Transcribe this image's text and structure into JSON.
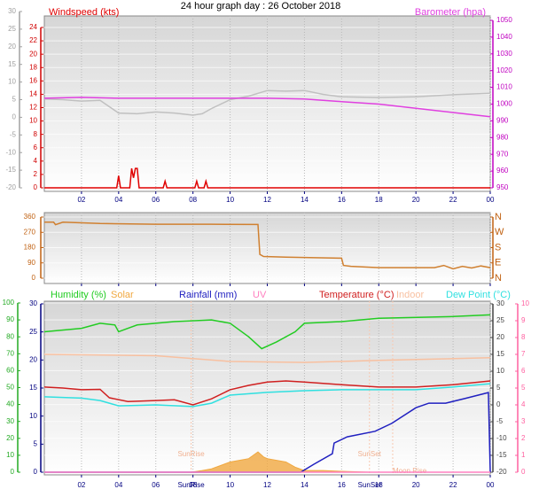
{
  "chart_data": [
    {
      "type": "line",
      "title": "24 hour graph day : 26 October 2018",
      "xlim": [
        0,
        24
      ],
      "xticks": [
        {
          "value": 2,
          "label": "02"
        },
        {
          "value": 4,
          "label": "04"
        },
        {
          "value": 6,
          "label": "06"
        },
        {
          "value": 8,
          "label": "08"
        },
        10,
        12,
        14,
        16,
        18,
        20,
        22,
        {
          "value": 24,
          "label": "00"
        }
      ],
      "ylim": [
        0,
        24
      ],
      "yticks": [
        0,
        2,
        4,
        6,
        8,
        10,
        12,
        14,
        16,
        18,
        20,
        22,
        24
      ],
      "y2lim": [
        950,
        1050
      ],
      "y2ticks": [
        950,
        960,
        970,
        980,
        990,
        1000,
        1010,
        1020,
        1030,
        1040,
        1050
      ],
      "y3lim": [
        -20,
        30
      ],
      "y3ticks": [
        -20,
        -15,
        -10,
        -5,
        0,
        5,
        10,
        15,
        20,
        25,
        30
      ],
      "grid": true,
      "series": [
        {
          "color": "#c0c0c0",
          "axis": "y3",
          "x": [
            0,
            1,
            2,
            3,
            3.5,
            4,
            5,
            6,
            7,
            8,
            8.5,
            9,
            10,
            11,
            12,
            13,
            14,
            15,
            16,
            18,
            20,
            22,
            24
          ],
          "values": [
            5.2,
            5,
            4.6,
            4.8,
            3,
            1.2,
            1,
            1.5,
            1.2,
            0.6,
            1,
            2.5,
            5,
            6,
            7.6,
            7.4,
            7.6,
            6.5,
            5.8,
            5.6,
            5.8,
            6.4,
            6.8
          ]
        },
        {
          "name": "Windspeed (kts)",
          "color": "#e00000",
          "axis": "y",
          "x": [
            0,
            3.9,
            4.0,
            4.1,
            4.6,
            4.7,
            4.8,
            4.9,
            5.0,
            5.1,
            6.4,
            6.5,
            6.6,
            8.1,
            8.2,
            8.3,
            8.6,
            8.7,
            8.8,
            24
          ],
          "values": [
            0,
            0,
            1.8,
            0,
            0,
            2.9,
            1.5,
            2.9,
            2.9,
            0,
            0,
            1,
            0,
            0,
            1,
            0,
            0,
            1,
            0,
            0
          ]
        },
        {
          "name": "Barometer (hpa)",
          "color": "#e040e0",
          "axis": "y2",
          "x": [
            0,
            2,
            4,
            6,
            8,
            10,
            12,
            14,
            16,
            18,
            20,
            22,
            24
          ],
          "values": [
            1003.5,
            1004,
            1003.5,
            1003.5,
            1003.5,
            1003.5,
            1003.5,
            1003,
            1001.5,
            1000,
            997.5,
            995,
            992.5
          ]
        }
      ]
    },
    {
      "type": "line",
      "xlim": [
        0,
        24
      ],
      "xticks": [
        {
          "value": 2,
          "label": "02"
        },
        {
          "value": 4,
          "label": "04"
        },
        {
          "value": 6,
          "label": "06"
        },
        {
          "value": 8,
          "label": "08"
        },
        10,
        12,
        14,
        16,
        18,
        20,
        22,
        {
          "value": 24,
          "label": "00"
        }
      ],
      "ylim": [
        0,
        360
      ],
      "yticks": [
        0,
        90,
        180,
        270,
        360
      ],
      "y2lim": [
        0,
        360
      ],
      "y2ticks": [
        {
          "value": 0,
          "label": "N"
        },
        {
          "value": 90,
          "label": "E"
        },
        {
          "value": 180,
          "label": "S"
        },
        {
          "value": 270,
          "label": "W"
        },
        {
          "value": 360,
          "label": "N"
        }
      ],
      "grid": true,
      "series": [
        {
          "color": "#d08030",
          "axis": "y",
          "x": [
            0,
            0.5,
            0.6,
            1,
            3,
            6,
            9,
            11.5,
            11.6,
            11.8,
            13,
            16,
            16.1,
            16.5,
            18,
            21,
            21.5,
            22,
            22.5,
            23,
            23.5,
            24
          ],
          "values": [
            330,
            330,
            315,
            330,
            322,
            318,
            318,
            316,
            140,
            128,
            124,
            118,
            75,
            70,
            62,
            62,
            75,
            55,
            70,
            60,
            72,
            62
          ]
        }
      ]
    },
    {
      "type": "line",
      "xlim": [
        0,
        24
      ],
      "xticks": [
        {
          "value": 2,
          "label": "02"
        },
        {
          "value": 4,
          "label": "04"
        },
        {
          "value": 6,
          "label": "06"
        },
        {
          "value": 8,
          "label": "08"
        },
        10,
        12,
        14,
        16,
        18,
        20,
        22,
        {
          "value": 24,
          "label": "00"
        }
      ],
      "ylim": [
        0,
        100
      ],
      "yticks": [
        0,
        10,
        20,
        30,
        40,
        50,
        60,
        70,
        80,
        90,
        100
      ],
      "y2lim": [
        -20,
        30
      ],
      "y2ticks": [
        -20,
        -15,
        -10,
        -5,
        0,
        5,
        10,
        15,
        20,
        25,
        30
      ],
      "y3lim": [
        0,
        30
      ],
      "y3ticks": [
        0,
        5,
        10,
        15,
        20,
        25,
        30
      ],
      "y4lim": [
        0,
        10
      ],
      "y4ticks": [
        0,
        1,
        2,
        3,
        4,
        5,
        6,
        7,
        8,
        9,
        10
      ],
      "grid": true,
      "annotations": [
        {
          "text": "SunRise",
          "x": 7.9
        },
        {
          "text": "SunSet",
          "x": 17.5
        },
        {
          "text": "Moon Rise",
          "x": 18.75
        }
      ],
      "series": [
        {
          "name": "Humidity (%)",
          "color": "#22cc22",
          "axis": "y",
          "x": [
            0,
            2,
            3,
            3.8,
            4,
            4.5,
            5,
            7,
            9,
            10,
            11,
            11.7,
            12.5,
            13.5,
            14,
            16,
            18,
            22,
            24
          ],
          "values": [
            83,
            85,
            88,
            87,
            83,
            85,
            87,
            89,
            90,
            88,
            80,
            73,
            77,
            83,
            88,
            89,
            91,
            92,
            93
          ]
        },
        {
          "name": "Solar",
          "color": "#f0a840",
          "axis": "y",
          "area": true,
          "x": [
            7.9,
            8.5,
            9,
            9.5,
            10,
            10.5,
            11,
            11.5,
            11.8,
            12,
            12.5,
            13,
            13.5,
            14,
            15,
            16,
            17.5
          ],
          "values": [
            0,
            1,
            2,
            4,
            6,
            7,
            8,
            12,
            9,
            8,
            7,
            6,
            3,
            1,
            1,
            0.5,
            0
          ]
        },
        {
          "name": "Rainfall (mm)",
          "color": "#2020c0",
          "axis": "y3",
          "x": [
            0,
            13.8,
            14.5,
            15.5,
            15.6,
            16.3,
            17.8,
            18.7,
            20,
            20.7,
            21.6,
            22.6,
            23.9,
            24
          ],
          "values": [
            0,
            0,
            1.4,
            3.3,
            5.2,
            6.3,
            7.3,
            8.7,
            11.5,
            12.3,
            12.3,
            13.1,
            14.2,
            0
          ]
        },
        {
          "name": "UV",
          "color": "#ff80c0",
          "axis": "y4",
          "x": [
            0,
            24
          ],
          "values": [
            0,
            0
          ]
        },
        {
          "name": "Temperature (°C)",
          "color": "#d02020",
          "axis": "y2",
          "x": [
            0,
            1,
            2,
            3,
            3.5,
            4.5,
            6,
            7,
            8,
            9,
            10,
            11,
            12,
            13,
            14,
            16,
            18,
            20,
            22,
            24
          ],
          "values": [
            5.3,
            5,
            4.5,
            4.6,
            2.1,
            1,
            1.3,
            1.5,
            0,
            1.8,
            4.5,
            5.8,
            6.8,
            7.1,
            6.8,
            6,
            5.3,
            5.3,
            6,
            7.1
          ]
        },
        {
          "name": "Indoor",
          "color": "#f8c0a0",
          "axis": "y2",
          "x": [
            0,
            6,
            10,
            14,
            18,
            24
          ],
          "values": [
            15,
            14.6,
            12.9,
            12.6,
            13.2,
            14
          ]
        },
        {
          "name": "Dew Point (°C)",
          "color": "#30e0e0",
          "axis": "y2",
          "x": [
            0,
            2,
            3,
            4,
            6,
            8,
            9,
            10,
            12,
            14,
            16,
            18,
            20,
            22,
            24
          ],
          "values": [
            2.4,
            2,
            1.3,
            -0.3,
            0,
            -0.5,
            0.5,
            2.9,
            3.7,
            4.2,
            4.5,
            4.5,
            4.5,
            5.3,
            6.3
          ]
        }
      ]
    }
  ]
}
